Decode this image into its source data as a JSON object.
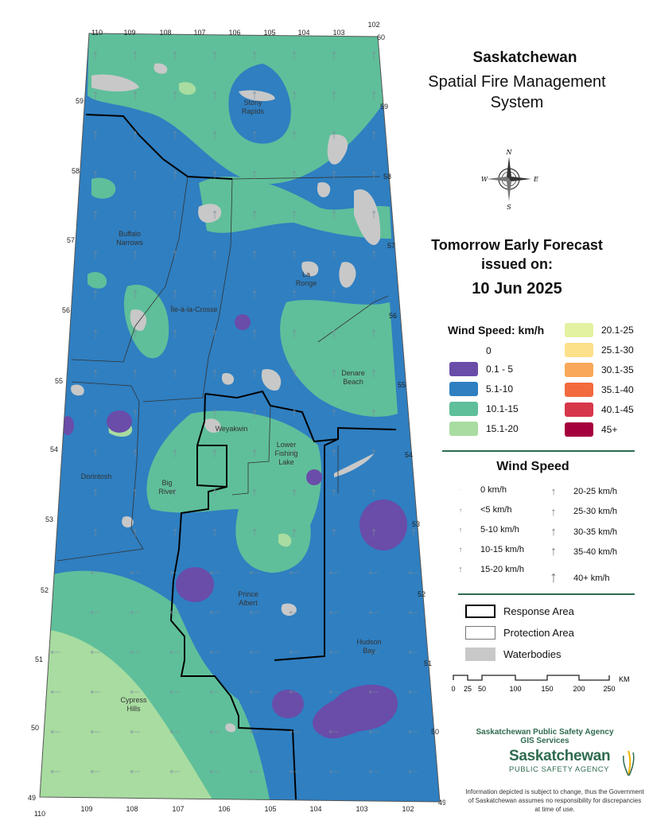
{
  "title": {
    "line1": "Saskatchewan",
    "line2": "Spatial Fire Management",
    "line3": "System"
  },
  "forecast": {
    "heading_line1": "Tomorrow Early Forecast",
    "heading_line2": "issued on:",
    "date": "10 Jun 2025"
  },
  "legend": {
    "title": "Wind Speed: km/h",
    "classes": [
      {
        "label": "0",
        "color": "#ffffff"
      },
      {
        "label": "0.1 - 5",
        "color": "#6a4ca9"
      },
      {
        "label": "5.1-10",
        "color": "#2f7fc1"
      },
      {
        "label": "10.1-15",
        "color": "#5fbf9a"
      },
      {
        "label": "15.1-20",
        "color": "#a8dca0"
      },
      {
        "label": "20.1-25",
        "color": "#e3f2a0"
      },
      {
        "label": "25.1-30",
        "color": "#fde08a"
      },
      {
        "label": "30.1-35",
        "color": "#f9a85a"
      },
      {
        "label": "35.1-40",
        "color": "#f26a3e"
      },
      {
        "label": "40.1-45",
        "color": "#d7374a"
      },
      {
        "label": "45+",
        "color": "#a5003d"
      }
    ]
  },
  "wind_arrows": {
    "title": "Wind Speed",
    "items": [
      {
        "label": "0 km/h"
      },
      {
        "label": "<5 km/h"
      },
      {
        "label": "5-10 km/h"
      },
      {
        "label": "10-15 km/h"
      },
      {
        "label": "15-20 km/h"
      },
      {
        "label": "20-25 km/h"
      },
      {
        "label": "25-30 km/h"
      },
      {
        "label": "30-35 km/h"
      },
      {
        "label": "35-40 km/h"
      },
      {
        "label": "40+ km/h"
      }
    ]
  },
  "boundaries": {
    "response": "Response Area",
    "protection": "Protection Area",
    "water": "Waterbodies"
  },
  "scale_bar": {
    "ticks": [
      "0",
      "25",
      "50",
      "100",
      "150",
      "200",
      "250"
    ],
    "unit": "KM"
  },
  "agency": {
    "line1": "Saskatchewan Public Safety Agency",
    "line2": "GIS  Services",
    "logo_main": "Saskatchewan",
    "logo_sub": "PUBLIC SAFETY AGENCY",
    "disclaimer": "Information depicted is subject to change, thus the Government of Saskatchewan assumes no responsibility for discrepancies at time of use."
  },
  "places": [
    "Stony Rapids",
    "Buffalo Narrows",
    "La Ronge",
    "Île-à-la-Crosse",
    "Denare Beach",
    "Weyakwin",
    "Lower Fishing Lake",
    "Dorintosh",
    "Big River",
    "Prince Albert",
    "Hudson Bay",
    "Cypress Hills"
  ],
  "lon_top": [
    "110",
    "109",
    "108",
    "107",
    "106",
    "105",
    "104",
    "103",
    "102"
  ],
  "lon_bottom": [
    "110",
    "109",
    "108",
    "107",
    "106",
    "105",
    "104",
    "103",
    "102"
  ],
  "lat_left": [
    "59",
    "58",
    "57",
    "56",
    "55",
    "54",
    "53",
    "52",
    "51",
    "50",
    "49"
  ],
  "lat_right": [
    "60",
    "59",
    "58",
    "57",
    "56",
    "55",
    "54",
    "53",
    "52",
    "51",
    "50",
    "49"
  ]
}
